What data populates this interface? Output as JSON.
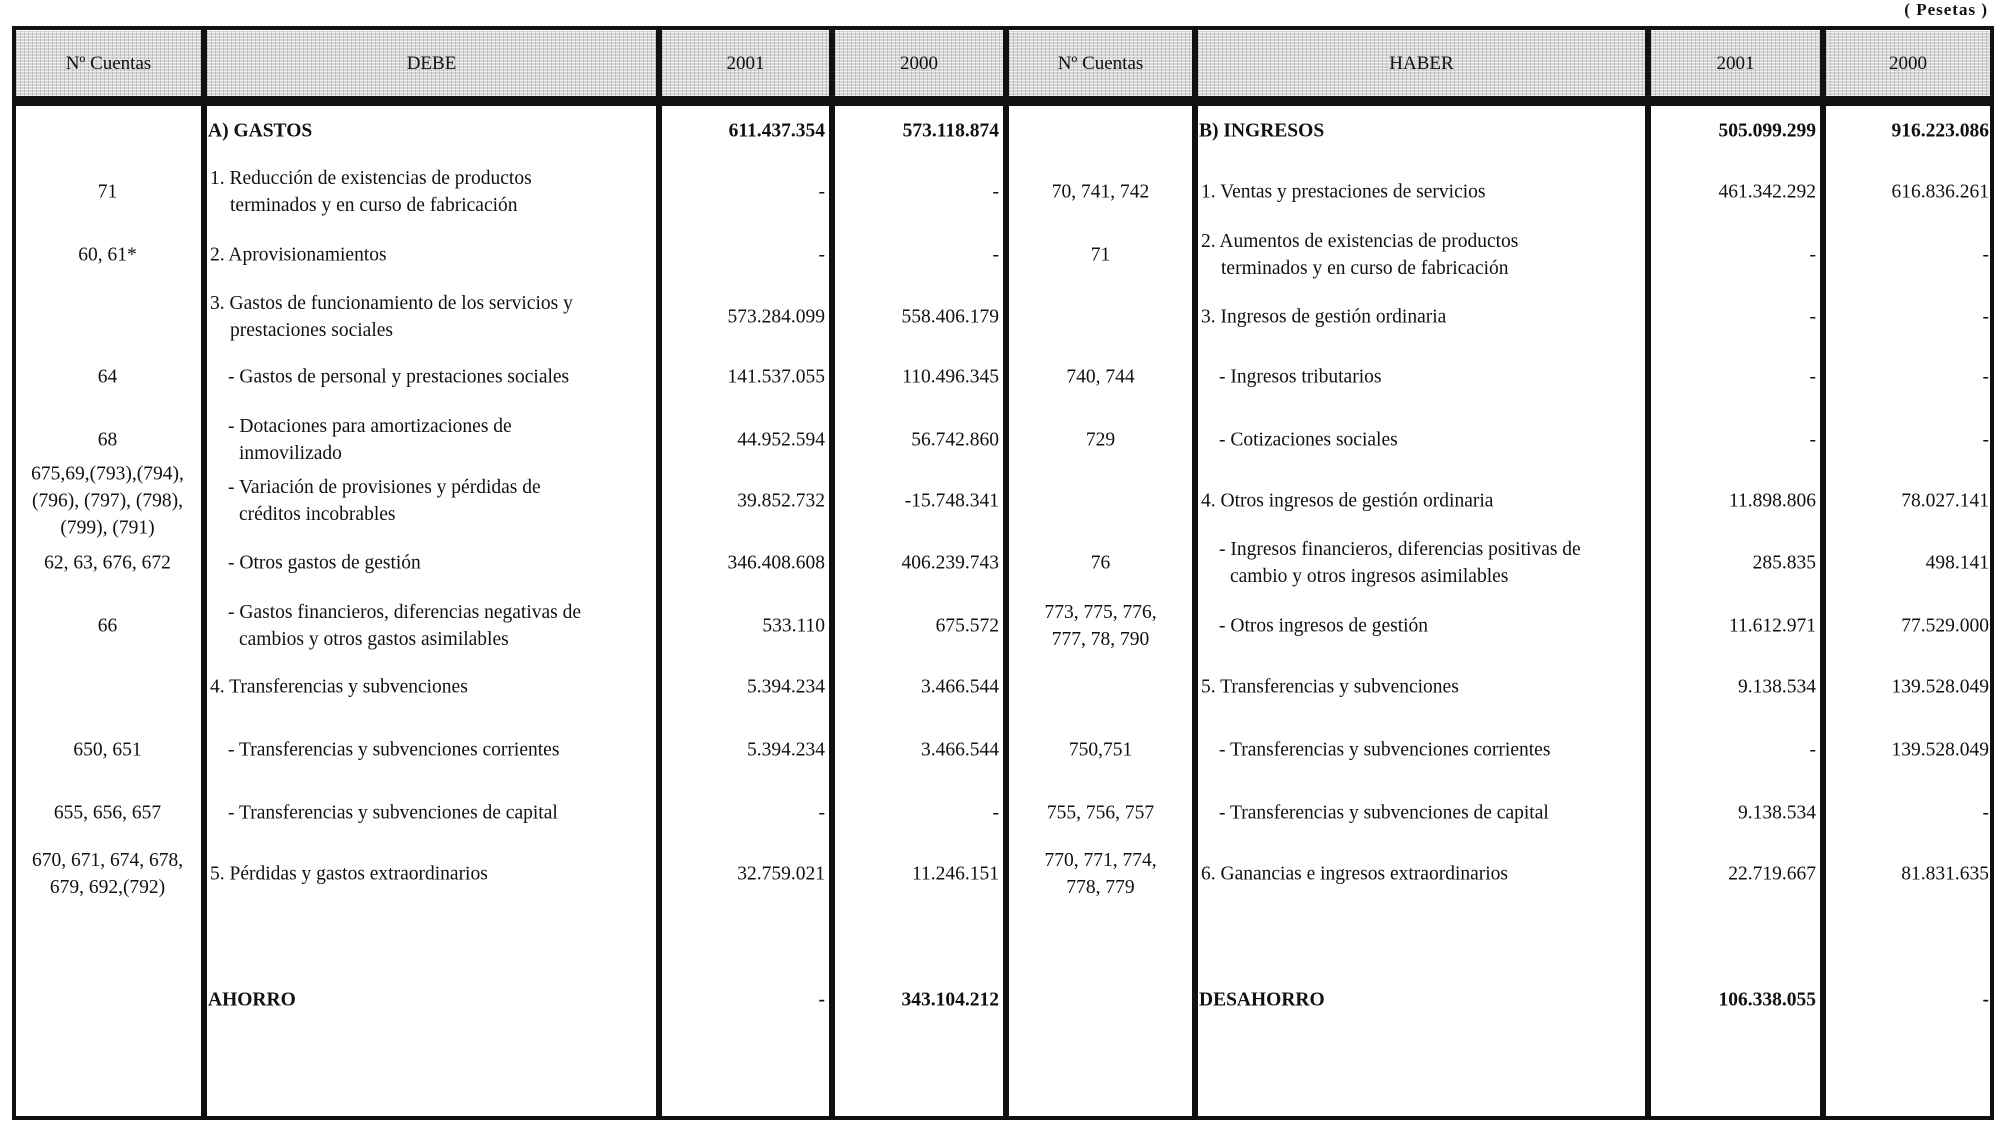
{
  "unit": "( Pesetas )",
  "headers": [
    "Nº Cuentas",
    "DEBE",
    "2001",
    "2000",
    "Nº Cuentas",
    "HABER",
    "2001",
    "2000"
  ],
  "rows": [
    {
      "style": "bold",
      "d_acct": "",
      "d_label": "A) GASTOS",
      "d_2001": "611.437.354",
      "d_2000": "573.118.874",
      "h_acct": "",
      "h_label": "B) INGRESOS",
      "h_2001": "505.099.299",
      "h_2000": "916.223.086"
    },
    {
      "style": "num",
      "d_acct": "71",
      "d_label": "1. Reducción de existencias de productos\nterminados y en curso de fabricación",
      "d_2001": "-",
      "d_2000": "-",
      "h_acct": "70, 741, 742",
      "h_label": "1. Ventas y prestaciones de servicios",
      "h_2001": "461.342.292",
      "h_2000": "616.836.261"
    },
    {
      "style": "num",
      "d_acct": "60, 61*",
      "d_label": "2. Aprovisionamientos",
      "d_2001": "-",
      "d_2000": "-",
      "h_acct": "71",
      "h_label": "2. Aumentos de existencias de productos\nterminados y en curso de fabricación",
      "h_2001": "-",
      "h_2000": "-"
    },
    {
      "style": "num",
      "d_acct": "",
      "d_label": "3. Gastos de funcionamiento de los servicios y\nprestaciones sociales",
      "d_2001": "573.284.099",
      "d_2000": "558.406.179",
      "h_acct": "",
      "h_label": "3. Ingresos de gestión ordinaria",
      "h_2001": "-",
      "h_2000": "-"
    },
    {
      "style": "sub",
      "d_acct": "64",
      "d_label": "- Gastos de personal y prestaciones sociales",
      "d_2001": "141.537.055",
      "d_2000": "110.496.345",
      "h_acct": "740, 744",
      "h_label": "- Ingresos tributarios",
      "h_2001": "-",
      "h_2000": "-"
    },
    {
      "style": "sub",
      "d_acct": "68",
      "d_label": "- Dotaciones para amortizaciones de\ninmovilizado",
      "d_2001": "44.952.594",
      "d_2000": "56.742.860",
      "h_acct": "729",
      "h_label": "- Cotizaciones sociales",
      "h_2001": "-",
      "h_2000": "-"
    },
    {
      "style": "sub",
      "h_style": "num",
      "d_acct": "675,69,(793),(794),\n(796), (797), (798),\n(799), (791)",
      "d_label": "- Variación de provisiones y pérdidas de\ncréditos incobrables",
      "d_2001": "39.852.732",
      "d_2000": "-15.748.341",
      "h_acct": "",
      "h_label": "4. Otros ingresos de gestión ordinaria",
      "h_2001": "11.898.806",
      "h_2000": "78.027.141"
    },
    {
      "style": "sub",
      "d_acct": "62, 63, 676, 672",
      "d_label": "- Otros gastos de gestión",
      "d_2001": "346.408.608",
      "d_2000": "406.239.743",
      "h_acct": "76",
      "h_label": "- Ingresos financieros, diferencias positivas de\ncambio y otros ingresos asimilables",
      "h_2001": "285.835",
      "h_2000": "498.141"
    },
    {
      "style": "sub",
      "d_acct": "66",
      "d_label": "- Gastos financieros, diferencias negativas de\ncambios y otros gastos asimilables",
      "d_2001": "533.110",
      "d_2000": "675.572",
      "h_acct": "773, 775, 776,\n777, 78, 790",
      "h_label": "- Otros ingresos de gestión",
      "h_2001": "11.612.971",
      "h_2000": "77.529.000"
    },
    {
      "style": "num",
      "d_acct": "",
      "d_label": "4. Transferencias y subvenciones",
      "d_2001": "5.394.234",
      "d_2000": "3.466.544",
      "h_acct": "",
      "h_label": "5. Transferencias y subvenciones",
      "h_2001": "9.138.534",
      "h_2000": "139.528.049"
    },
    {
      "style": "sub",
      "d_acct": "650, 651",
      "d_label": "- Transferencias y subvenciones corrientes",
      "d_2001": "5.394.234",
      "d_2000": "3.466.544",
      "h_acct": "750,751",
      "h_label": "- Transferencias y subvenciones corrientes",
      "h_2001": "-",
      "h_2000": "139.528.049"
    },
    {
      "style": "sub",
      "d_acct": "655, 656, 657",
      "d_label": "- Transferencias y subvenciones de capital",
      "d_2001": "-",
      "d_2000": "-",
      "h_acct": "755, 756, 757",
      "h_label": "- Transferencias y subvenciones de capital",
      "h_2001": "9.138.534",
      "h_2000": "-"
    },
    {
      "style": "num",
      "d_acct": "670, 671, 674, 678,\n679, 692,(792)",
      "d_label": "5. Pérdidas y gastos extraordinarios",
      "d_2001": "32.759.021",
      "d_2000": "11.246.151",
      "h_acct": "770, 771, 774,\n778, 779",
      "h_label": "6. Ganancias e ingresos extraordinarios",
      "h_2001": "22.719.667",
      "h_2000": "81.831.635"
    },
    {
      "style": "bold",
      "d_acct": "",
      "d_label": "AHORRO",
      "d_2001": "-",
      "d_2000": "343.104.212",
      "h_acct": "",
      "h_label": "DESAHORRO",
      "h_2001": "106.338.055",
      "h_2000": "-"
    }
  ]
}
